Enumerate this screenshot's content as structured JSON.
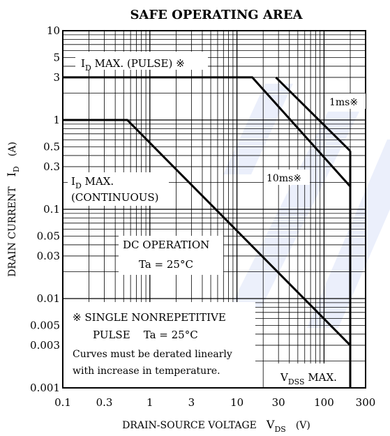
{
  "chart_data": {
    "type": "line",
    "title": "SAFE OPERATING AREA",
    "xscale": "log",
    "yscale": "log",
    "xlim": [
      0.1,
      300
    ],
    "ylim": [
      0.001,
      10
    ],
    "grid": true,
    "x_ticks": [
      {
        "v": 0.1,
        "label": "0.1"
      },
      {
        "v": 0.3,
        "label": "0.3"
      },
      {
        "v": 1,
        "label": "1"
      },
      {
        "v": 3,
        "label": "3"
      },
      {
        "v": 10,
        "label": "10"
      },
      {
        "v": 30,
        "label": "30"
      },
      {
        "v": 100,
        "label": "100"
      },
      {
        "v": 300,
        "label": "300"
      }
    ],
    "y_ticks": [
      {
        "v": 10,
        "label": "10"
      },
      {
        "v": 5,
        "label": "5"
      },
      {
        "v": 3,
        "label": "3"
      },
      {
        "v": 1,
        "label": "1"
      },
      {
        "v": 0.5,
        "label": "0.5"
      },
      {
        "v": 0.3,
        "label": "0.3"
      },
      {
        "v": 0.1,
        "label": "0.1"
      },
      {
        "v": 0.05,
        "label": "0.05"
      },
      {
        "v": 0.03,
        "label": "0.03"
      },
      {
        "v": 0.01,
        "label": "0.01"
      },
      {
        "v": 0.005,
        "label": "0.005"
      },
      {
        "v": 0.003,
        "label": "0.003"
      },
      {
        "v": 0.001,
        "label": "0.001"
      }
    ],
    "xlabel": {
      "main": "DRAIN-SOURCE VOLTAGE",
      "sym": "V",
      "sub": "DS",
      "unit": "(V)"
    },
    "ylabel": {
      "main": "DRAIN CURRENT",
      "sym": "I",
      "sub": "D",
      "unit": "(A)"
    },
    "series": [
      {
        "key": "dc",
        "x": [
          0.1,
          0.55,
          200
        ],
        "y": [
          1,
          1,
          0.003
        ]
      },
      {
        "key": "10ms",
        "x": [
          0.1,
          15,
          200
        ],
        "y": [
          3,
          3,
          0.18
        ]
      },
      {
        "key": "1ms",
        "x": [
          28,
          200
        ],
        "y": [
          3,
          0.45
        ]
      },
      {
        "key": "vdss",
        "x": [
          200,
          200
        ],
        "y": [
          0.45,
          0.001
        ]
      }
    ],
    "annotations": {
      "pulse": {
        "sym": "I",
        "sub": "D",
        "text": " MAX. (PULSE) ※"
      },
      "continuous": {
        "line1_sym": "I",
        "line1_sub": "D",
        "line1": " MAX.",
        "line2": "(CONTINUOUS)"
      },
      "label_1ms": "1ms※",
      "label_10ms": "10ms※",
      "dc": {
        "line1": "DC OPERATION",
        "line2": "Ta = 25°C"
      },
      "note": {
        "line1": "※ SINGLE NONREPETITIVE",
        "line2": "PULSE    Ta = 25°C",
        "line3": "Curves must be derated linearly",
        "line4": "with increase in temperature."
      },
      "vdss": {
        "sym": "V",
        "sub": "DSS",
        "text": " MAX."
      }
    }
  }
}
